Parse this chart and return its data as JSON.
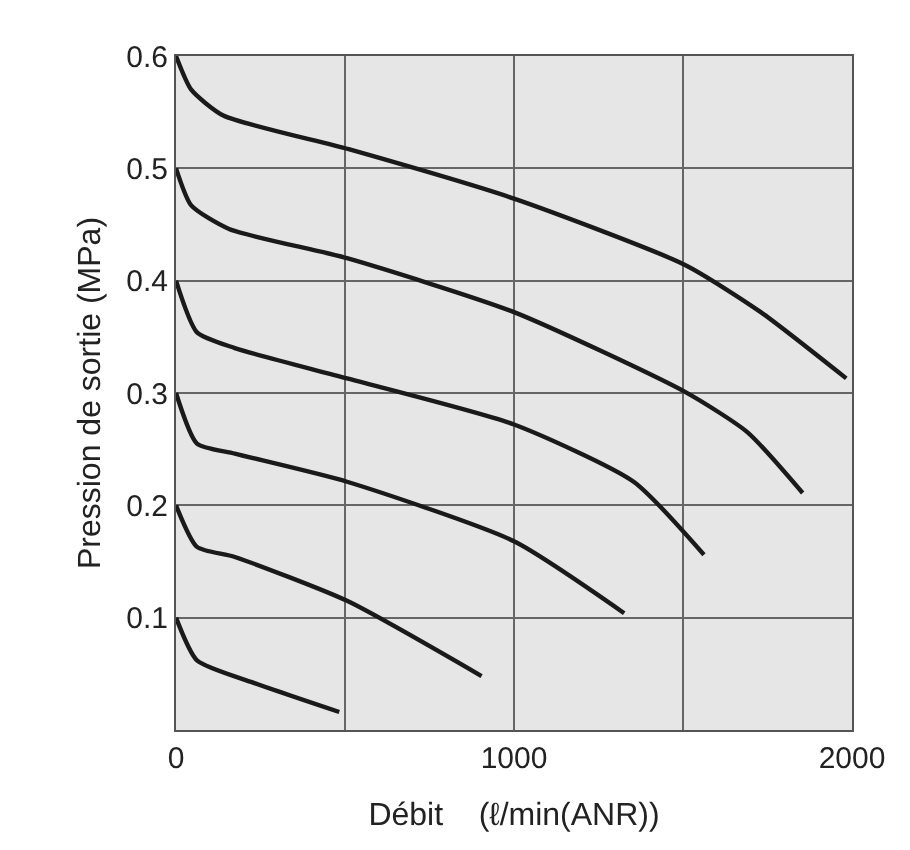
{
  "chart_data": {
    "type": "line",
    "xlabel": "Débit    (ℓ/min(ANR))",
    "ylabel": "Pression de sortie (MPa)",
    "xlim": [
      0,
      2000
    ],
    "xticks": [
      0,
      {
        "value": 500,
        "label": null
      },
      1000,
      {
        "value": 1500,
        "label": null
      },
      2000
    ],
    "ylim": [
      0,
      0.6
    ],
    "yticks": [
      0.1,
      0.2,
      0.3,
      0.4,
      0.5,
      0.6
    ],
    "grid": true,
    "marker": "none",
    "line_style": "solid",
    "series": [
      {
        "color": "#1a1a1a",
        "x": [
          0,
          45,
          140,
          511,
          1000,
          1506,
          1730,
          1983
        ],
        "values": [
          0.6,
          0.57,
          0.547,
          0.517,
          0.473,
          0.414,
          0.372,
          0.313
        ]
      },
      {
        "color": "#1a1a1a",
        "x": [
          0,
          45,
          157,
          506,
          1000,
          1506,
          1691,
          1854
        ],
        "values": [
          0.5,
          0.467,
          0.446,
          0.42,
          0.372,
          0.301,
          0.265,
          0.211
        ]
      },
      {
        "color": "#1a1a1a",
        "x": [
          0,
          62,
          174,
          506,
          1000,
          1354,
          1562
        ],
        "values": [
          0.4,
          0.354,
          0.34,
          0.313,
          0.272,
          0.221,
          0.156
        ]
      },
      {
        "color": "#1a1a1a",
        "x": [
          0,
          62,
          174,
          506,
          1000,
          1326
        ],
        "values": [
          0.3,
          0.255,
          0.246,
          0.221,
          0.168,
          0.104
        ]
      },
      {
        "color": "#1a1a1a",
        "x": [
          0,
          62,
          174,
          506,
          904
        ],
        "values": [
          0.2,
          0.163,
          0.154,
          0.115,
          0.048
        ]
      },
      {
        "color": "#1a1a1a",
        "x": [
          0,
          62,
          230,
          483
        ],
        "values": [
          0.1,
          0.062,
          0.042,
          0.016
        ]
      }
    ]
  }
}
